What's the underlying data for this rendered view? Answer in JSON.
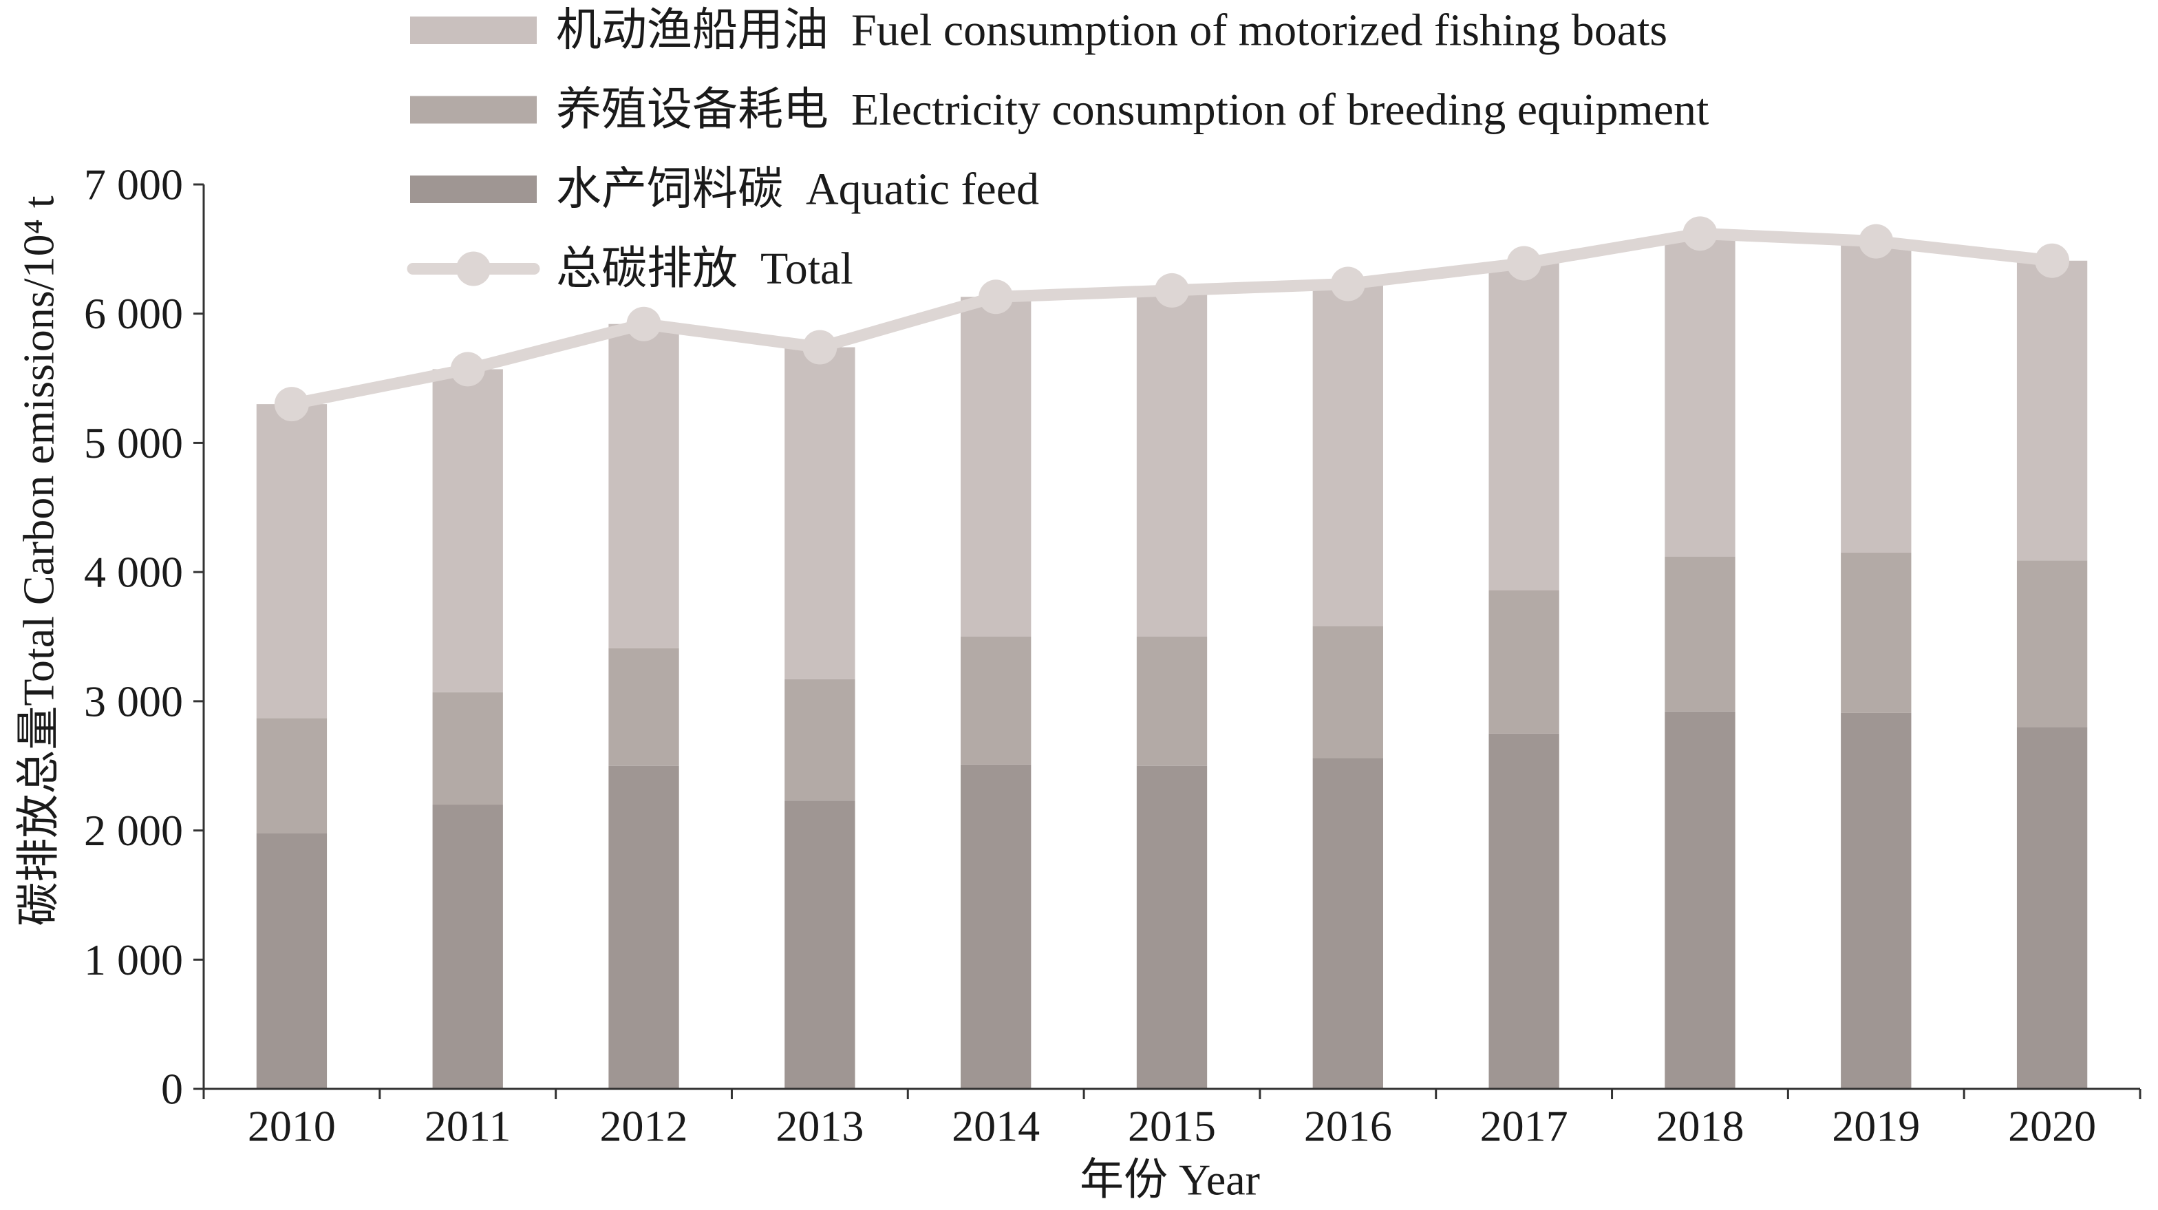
{
  "chart_data": {
    "type": "bar",
    "stacked": true,
    "categories": [
      "2010",
      "2011",
      "2012",
      "2013",
      "2014",
      "2015",
      "2016",
      "2017",
      "2018",
      "2019",
      "2020"
    ],
    "series": [
      {
        "name": "水产饲料碳  Aquatic feed",
        "type": "bar",
        "color": "#9f9693",
        "values": [
          1980,
          2200,
          2500,
          2230,
          2510,
          2500,
          2560,
          2750,
          2920,
          2910,
          2800
        ]
      },
      {
        "name": "养殖设备耗电  Electricity consumption of breeding equipment",
        "type": "bar",
        "color": "#b3aaa6",
        "values": [
          890,
          870,
          910,
          940,
          990,
          1000,
          1020,
          1110,
          1200,
          1240,
          1290
        ]
      },
      {
        "name": "机动渔船用油  Fuel consumption of motorized fishing boats",
        "type": "bar",
        "color": "#c9c0be",
        "values": [
          2430,
          2500,
          2510,
          2570,
          2630,
          2680,
          2650,
          2530,
          2500,
          2410,
          2320
        ]
      },
      {
        "name": "总碳排放  Total",
        "type": "line",
        "marker": "circle",
        "color": "#ddd6d4",
        "values": [
          5300,
          5570,
          5920,
          5740,
          6130,
          6180,
          6230,
          6390,
          6620,
          6560,
          6410
        ]
      }
    ],
    "xlabel": "年份 Year",
    "ylabel": "碳排放总量Total Carbon emissions/10⁴ t",
    "ylim": [
      0,
      7000
    ],
    "yticks": [
      0,
      1000,
      2000,
      3000,
      4000,
      5000,
      6000,
      7000
    ],
    "yticklabels": [
      "0",
      "1 000",
      "2 000",
      "3 000",
      "4 000",
      "5 000",
      "6 000",
      "7 000"
    ],
    "grid": false,
    "legend": {
      "position": "top",
      "order": [
        2,
        1,
        0,
        3
      ]
    },
    "axis_color": "#333333",
    "text_color": "#1a1a1a"
  }
}
